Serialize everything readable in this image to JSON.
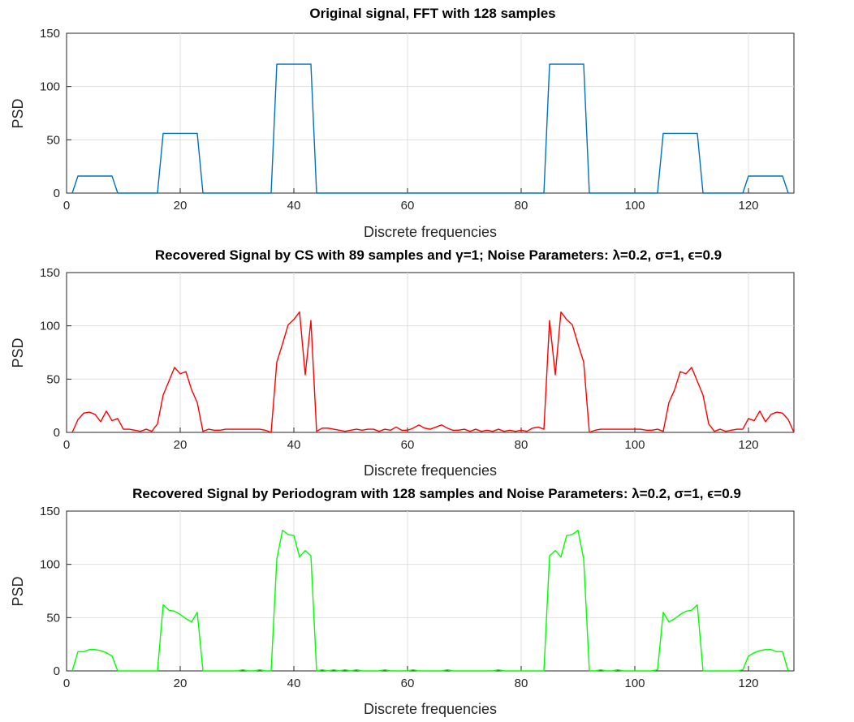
{
  "chart_data": [
    {
      "type": "line",
      "title": "Original signal, FFT with  128  samples",
      "xlabel": "Discrete frequencies",
      "ylabel": "PSD",
      "xlim": [
        0,
        128
      ],
      "ylim": [
        0,
        150
      ],
      "xticks": [
        0,
        20,
        40,
        60,
        80,
        100,
        120
      ],
      "yticks": [
        0,
        50,
        100,
        150
      ],
      "grid": true,
      "series": [
        {
          "color": "#0072BD",
          "points": [
            [
              1,
              0
            ],
            [
              2,
              16
            ],
            [
              8,
              16
            ],
            [
              9,
              0
            ],
            [
              16,
              0
            ],
            [
              17,
              56
            ],
            [
              23,
              56
            ],
            [
              24,
              0
            ],
            [
              36,
              0
            ],
            [
              37,
              121
            ],
            [
              43,
              121
            ],
            [
              44,
              0
            ],
            [
              84,
              0
            ],
            [
              85,
              121
            ],
            [
              91,
              121
            ],
            [
              92,
              0
            ],
            [
              104,
              0
            ],
            [
              105,
              56
            ],
            [
              111,
              56
            ],
            [
              112,
              0
            ],
            [
              119,
              0
            ],
            [
              120,
              16
            ],
            [
              126,
              16
            ],
            [
              127,
              0
            ]
          ]
        }
      ]
    },
    {
      "type": "line",
      "title": "Recovered Signal by CS with 89 samples and γ=1; Noise Parameters: λ=0.2, σ=1, ϵ=0.9",
      "xlabel": "Discrete frequencies",
      "ylabel": "PSD",
      "xlim": [
        0,
        128
      ],
      "ylim": [
        0,
        150
      ],
      "xticks": [
        0,
        20,
        40,
        60,
        80,
        100,
        120
      ],
      "yticks": [
        0,
        50,
        100,
        150
      ],
      "grid": true,
      "series": [
        {
          "color": "#FF0000",
          "points": [
            [
              1,
              0
            ],
            [
              2,
              12
            ],
            [
              3,
              18
            ],
            [
              4,
              19
            ],
            [
              5,
              17
            ],
            [
              6,
              10
            ],
            [
              7,
              20
            ],
            [
              8,
              11
            ],
            [
              9,
              13
            ],
            [
              10,
              3
            ],
            [
              11,
              3
            ],
            [
              12,
              2
            ],
            [
              13,
              1
            ],
            [
              14,
              3
            ],
            [
              15,
              1
            ],
            [
              16,
              8
            ],
            [
              17,
              35
            ],
            [
              18,
              48
            ],
            [
              19,
              61
            ],
            [
              20,
              55
            ],
            [
              21,
              57
            ],
            [
              22,
              40
            ],
            [
              23,
              28
            ],
            [
              24,
              1
            ],
            [
              25,
              3
            ],
            [
              26,
              2
            ],
            [
              27,
              2
            ],
            [
              28,
              3
            ],
            [
              29,
              3
            ],
            [
              30,
              3
            ],
            [
              31,
              3
            ],
            [
              32,
              3
            ],
            [
              33,
              3
            ],
            [
              34,
              3
            ],
            [
              35,
              2
            ],
            [
              36,
              0
            ],
            [
              37,
              66
            ],
            [
              38,
              83
            ],
            [
              39,
              101
            ],
            [
              40,
              106
            ],
            [
              41,
              113
            ],
            [
              42,
              54
            ],
            [
              43,
              105
            ],
            [
              44,
              1
            ],
            [
              45,
              4
            ],
            [
              46,
              4
            ],
            [
              47,
              3
            ],
            [
              48,
              2
            ],
            [
              49,
              1
            ],
            [
              50,
              2
            ],
            [
              51,
              3
            ],
            [
              52,
              2
            ],
            [
              53,
              3
            ],
            [
              54,
              3
            ],
            [
              55,
              1
            ],
            [
              56,
              3
            ],
            [
              57,
              2
            ],
            [
              58,
              5
            ],
            [
              59,
              2
            ],
            [
              60,
              2
            ],
            [
              61,
              4
            ],
            [
              62,
              7
            ],
            [
              63,
              4
            ],
            [
              64,
              3
            ],
            [
              65,
              5
            ],
            [
              66,
              7
            ],
            [
              67,
              4
            ],
            [
              68,
              2
            ],
            [
              69,
              2
            ],
            [
              70,
              3
            ],
            [
              71,
              1
            ],
            [
              72,
              3
            ],
            [
              73,
              1
            ],
            [
              74,
              2
            ],
            [
              75,
              1
            ],
            [
              76,
              3
            ],
            [
              77,
              1
            ],
            [
              78,
              2
            ],
            [
              79,
              1
            ],
            [
              80,
              2
            ],
            [
              81,
              1
            ],
            [
              82,
              4
            ],
            [
              83,
              5
            ],
            [
              84,
              3
            ],
            [
              85,
              105
            ],
            [
              86,
              54
            ],
            [
              87,
              113
            ],
            [
              88,
              106
            ],
            [
              89,
              101
            ],
            [
              90,
              83
            ],
            [
              91,
              66
            ],
            [
              92,
              0
            ],
            [
              93,
              2
            ],
            [
              94,
              3
            ],
            [
              95,
              3
            ],
            [
              96,
              3
            ],
            [
              97,
              3
            ],
            [
              98,
              3
            ],
            [
              99,
              3
            ],
            [
              100,
              3
            ],
            [
              101,
              3
            ],
            [
              102,
              2
            ],
            [
              103,
              2
            ],
            [
              104,
              3
            ],
            [
              105,
              1
            ],
            [
              106,
              28
            ],
            [
              107,
              40
            ],
            [
              108,
              57
            ],
            [
              109,
              55
            ],
            [
              110,
              61
            ],
            [
              111,
              48
            ],
            [
              112,
              35
            ],
            [
              113,
              8
            ],
            [
              114,
              1
            ],
            [
              115,
              3
            ],
            [
              116,
              1
            ],
            [
              117,
              2
            ],
            [
              118,
              3
            ],
            [
              119,
              3
            ],
            [
              120,
              13
            ],
            [
              121,
              11
            ],
            [
              122,
              20
            ],
            [
              123,
              10
            ],
            [
              124,
              17
            ],
            [
              125,
              19
            ],
            [
              126,
              18
            ],
            [
              127,
              12
            ],
            [
              128,
              0
            ]
          ]
        }
      ]
    },
    {
      "type": "line",
      "title": "Recovered Signal by Periodogram with  128 samples and Noise Parameters: λ=0.2, σ=1, ϵ=0.9",
      "xlabel": "Discrete frequencies",
      "ylabel": "PSD",
      "xlim": [
        0,
        128
      ],
      "ylim": [
        0,
        150
      ],
      "xticks": [
        0,
        20,
        40,
        60,
        80,
        100,
        120
      ],
      "yticks": [
        0,
        50,
        100,
        150
      ],
      "grid": true,
      "series": [
        {
          "color": "#00FF00",
          "points": [
            [
              1,
              0
            ],
            [
              2,
              18
            ],
            [
              3,
              18
            ],
            [
              4,
              20
            ],
            [
              5,
              20
            ],
            [
              6,
              19
            ],
            [
              7,
              17
            ],
            [
              8,
              14
            ],
            [
              9,
              0
            ],
            [
              10,
              0
            ],
            [
              16,
              0
            ],
            [
              17,
              62
            ],
            [
              18,
              57
            ],
            [
              19,
              56
            ],
            [
              20,
              53
            ],
            [
              21,
              49
            ],
            [
              22,
              46
            ],
            [
              23,
              55
            ],
            [
              24,
              0
            ],
            [
              30,
              0
            ],
            [
              31,
              1
            ],
            [
              32,
              0
            ],
            [
              33,
              0
            ],
            [
              34,
              1
            ],
            [
              35,
              0
            ],
            [
              36,
              0
            ],
            [
              37,
              105
            ],
            [
              38,
              132
            ],
            [
              39,
              128
            ],
            [
              40,
              127
            ],
            [
              41,
              107
            ],
            [
              42,
              113
            ],
            [
              43,
              108
            ],
            [
              44,
              0
            ],
            [
              45,
              1
            ],
            [
              46,
              0
            ],
            [
              47,
              1
            ],
            [
              48,
              0
            ],
            [
              49,
              1
            ],
            [
              50,
              0
            ],
            [
              51,
              1
            ],
            [
              52,
              0
            ],
            [
              55,
              0
            ],
            [
              56,
              1
            ],
            [
              57,
              0
            ],
            [
              60,
              0
            ],
            [
              61,
              1
            ],
            [
              62,
              0
            ],
            [
              66,
              0
            ],
            [
              67,
              1
            ],
            [
              68,
              0
            ],
            [
              75,
              0
            ],
            [
              76,
              1
            ],
            [
              77,
              0
            ],
            [
              84,
              0
            ],
            [
              85,
              108
            ],
            [
              86,
              113
            ],
            [
              87,
              107
            ],
            [
              88,
              127
            ],
            [
              89,
              128
            ],
            [
              90,
              132
            ],
            [
              91,
              105
            ],
            [
              92,
              0
            ],
            [
              93,
              0
            ],
            [
              94,
              1
            ],
            [
              95,
              0
            ],
            [
              96,
              0
            ],
            [
              97,
              1
            ],
            [
              98,
              0
            ],
            [
              103,
              0
            ],
            [
              104,
              1
            ],
            [
              105,
              55
            ],
            [
              106,
              46
            ],
            [
              107,
              49
            ],
            [
              108,
              53
            ],
            [
              109,
              56
            ],
            [
              110,
              57
            ],
            [
              111,
              62
            ],
            [
              112,
              0
            ],
            [
              118,
              0
            ],
            [
              119,
              1
            ],
            [
              120,
              14
            ],
            [
              121,
              17
            ],
            [
              122,
              19
            ],
            [
              123,
              20
            ],
            [
              124,
              20
            ],
            [
              125,
              18
            ],
            [
              126,
              18
            ],
            [
              127,
              0
            ]
          ]
        }
      ]
    }
  ]
}
